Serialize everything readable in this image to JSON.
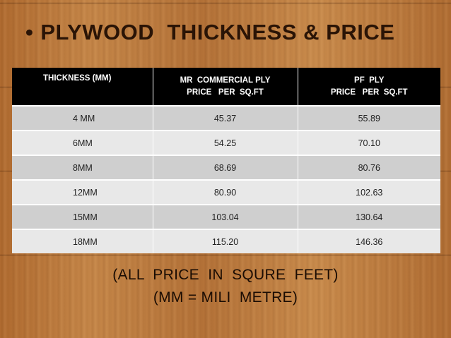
{
  "slide": {
    "bullet": "•",
    "title": "PLYWOOD  THICKNESS & PRICE"
  },
  "table": {
    "headers": [
      {
        "line1": "THICKNESS (MM)",
        "line2": ""
      },
      {
        "line1": "MR  COMMERCIAL PLY",
        "line2": "PRICE   PER  SQ.FT"
      },
      {
        "line1": "PF  PLY",
        "line2": "PRICE   PER  SQ.FT"
      }
    ],
    "rows": [
      [
        "4 MM",
        "45.37",
        "55.89"
      ],
      [
        "6MM",
        "54.25",
        "70.10"
      ],
      [
        "8MM",
        "68.69",
        "80.76"
      ],
      [
        "12MM",
        "80.90",
        "102.63"
      ],
      [
        "15MM",
        "103.04",
        "130.64"
      ],
      [
        "18MM",
        "115.20",
        "146.36"
      ]
    ]
  },
  "notes": {
    "line1": "(ALL  PRICE  IN  SQURE  FEET)",
    "line2": "(MM = MILI  METRE)"
  }
}
